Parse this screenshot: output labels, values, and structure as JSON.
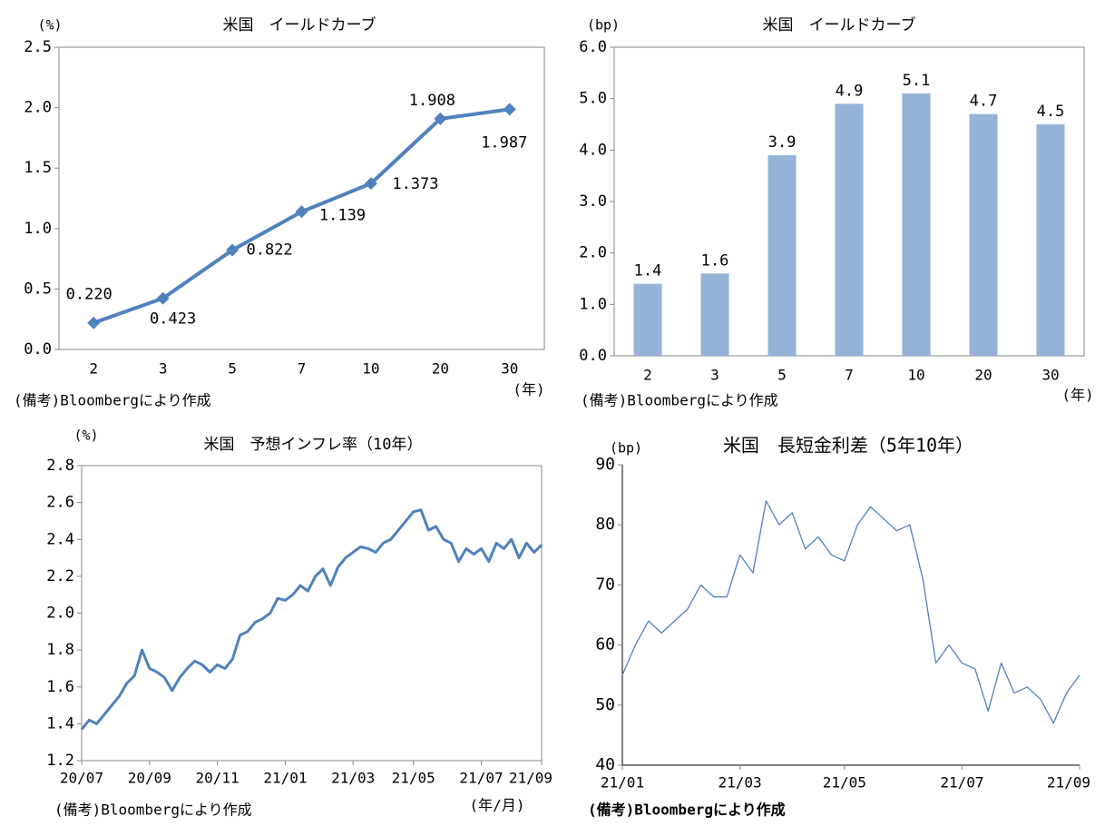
{
  "chart_data": [
    {
      "type": "line",
      "title": "米国　イールドカーブ",
      "y_label": "(%)",
      "x_label": "(年)",
      "note": "(備考)Bloombergにより作成",
      "categories": [
        "2",
        "3",
        "5",
        "7",
        "10",
        "20",
        "30"
      ],
      "values": [
        0.22,
        0.423,
        0.822,
        1.139,
        1.373,
        1.908,
        1.987
      ],
      "value_labels": [
        "0.220",
        "0.423",
        "0.822",
        "1.139",
        "1.373",
        "1.908",
        "1.987"
      ],
      "color": "#4f81bd",
      "markers": true,
      "ylim": [
        0,
        2.5
      ],
      "yticks": [
        {
          "value": 0,
          "label": "0.0"
        },
        0.5,
        {
          "value": 1,
          "label": "1.0"
        },
        1.5,
        {
          "value": 2,
          "label": "2.0"
        },
        2.5
      ]
    },
    {
      "type": "bar",
      "title": "米国　イールドカーブ",
      "y_label": "(bp)",
      "x_label": "(年)",
      "note": "(備考)Bloombergにより作成",
      "categories": [
        "2",
        "3",
        "5",
        "7",
        "10",
        "20",
        "30"
      ],
      "values": [
        1.4,
        1.6,
        3.9,
        4.9,
        5.1,
        4.7,
        4.5
      ],
      "color": "#95b3d7",
      "ylim": [
        0,
        6
      ],
      "yticks": [
        {
          "value": 0,
          "label": "0.0"
        },
        {
          "value": 1,
          "label": "1.0"
        },
        {
          "value": 2,
          "label": "2.0"
        },
        {
          "value": 3,
          "label": "3.0"
        },
        {
          "value": 4,
          "label": "4.0"
        },
        {
          "value": 5,
          "label": "5.0"
        },
        {
          "value": 6,
          "label": "6.0"
        }
      ]
    },
    {
      "type": "line",
      "title": "米国　予想インフレ率（10年）",
      "y_label": "(%)",
      "x_label": "(年/月)",
      "note": "(備考)Bloombergにより作成",
      "categories": [
        "20/07",
        null,
        null,
        null,
        null,
        null,
        null,
        null,
        null,
        "20/09",
        null,
        null,
        null,
        null,
        null,
        null,
        null,
        null,
        "20/11",
        null,
        null,
        null,
        null,
        null,
        null,
        null,
        null,
        "21/01",
        null,
        null,
        null,
        null,
        null,
        null,
        null,
        null,
        "21/03",
        null,
        null,
        null,
        null,
        null,
        null,
        null,
        "21/05",
        null,
        null,
        null,
        null,
        null,
        null,
        null,
        null,
        "21/07",
        null,
        null,
        null,
        null,
        null,
        null,
        null,
        "21/09"
      ],
      "values": [
        1.37,
        1.42,
        1.4,
        1.45,
        1.5,
        1.55,
        1.62,
        1.66,
        1.8,
        1.7,
        1.68,
        1.65,
        1.58,
        1.65,
        1.7,
        1.74,
        1.72,
        1.68,
        1.72,
        1.7,
        1.75,
        1.88,
        1.9,
        1.95,
        1.97,
        2.0,
        2.08,
        2.07,
        2.1,
        2.15,
        2.12,
        2.2,
        2.24,
        2.15,
        2.25,
        2.3,
        2.33,
        2.36,
        2.35,
        2.33,
        2.38,
        2.4,
        2.45,
        2.5,
        2.55,
        2.56,
        2.45,
        2.47,
        2.4,
        2.38,
        2.28,
        2.35,
        2.32,
        2.35,
        2.28,
        2.38,
        2.35,
        2.4,
        2.3,
        2.38,
        2.33,
        2.37
      ],
      "color": "#4f81bd",
      "ylim": [
        1.2,
        2.8
      ],
      "yticks": [
        1.2,
        1.4,
        1.6,
        1.8,
        {
          "value": 2,
          "label": "2.0"
        },
        2.2,
        2.4,
        2.6,
        2.8
      ]
    },
    {
      "type": "line",
      "title": "米国　長短金利差（5年10年）",
      "y_label": "(bp)",
      "note": "(備考)Bloombergにより作成",
      "categories": [
        "21/01",
        null,
        null,
        null,
        null,
        null,
        null,
        null,
        null,
        "21/03",
        null,
        null,
        null,
        null,
        null,
        null,
        null,
        "21/05",
        null,
        null,
        null,
        null,
        null,
        null,
        null,
        null,
        "21/07",
        null,
        null,
        null,
        null,
        null,
        null,
        null,
        null,
        "21/09"
      ],
      "values": [
        55,
        60,
        64,
        62,
        64,
        66,
        70,
        68,
        68,
        75,
        72,
        84,
        80,
        82,
        76,
        78,
        75,
        74,
        80,
        83,
        81,
        79,
        80,
        71,
        57,
        60,
        57,
        56,
        49,
        57,
        52,
        53,
        51,
        47,
        52,
        55
      ],
      "color": "#4f81bd",
      "ylim": [
        40,
        90
      ],
      "yticks": [
        40,
        50,
        60,
        70,
        80,
        90
      ]
    }
  ]
}
